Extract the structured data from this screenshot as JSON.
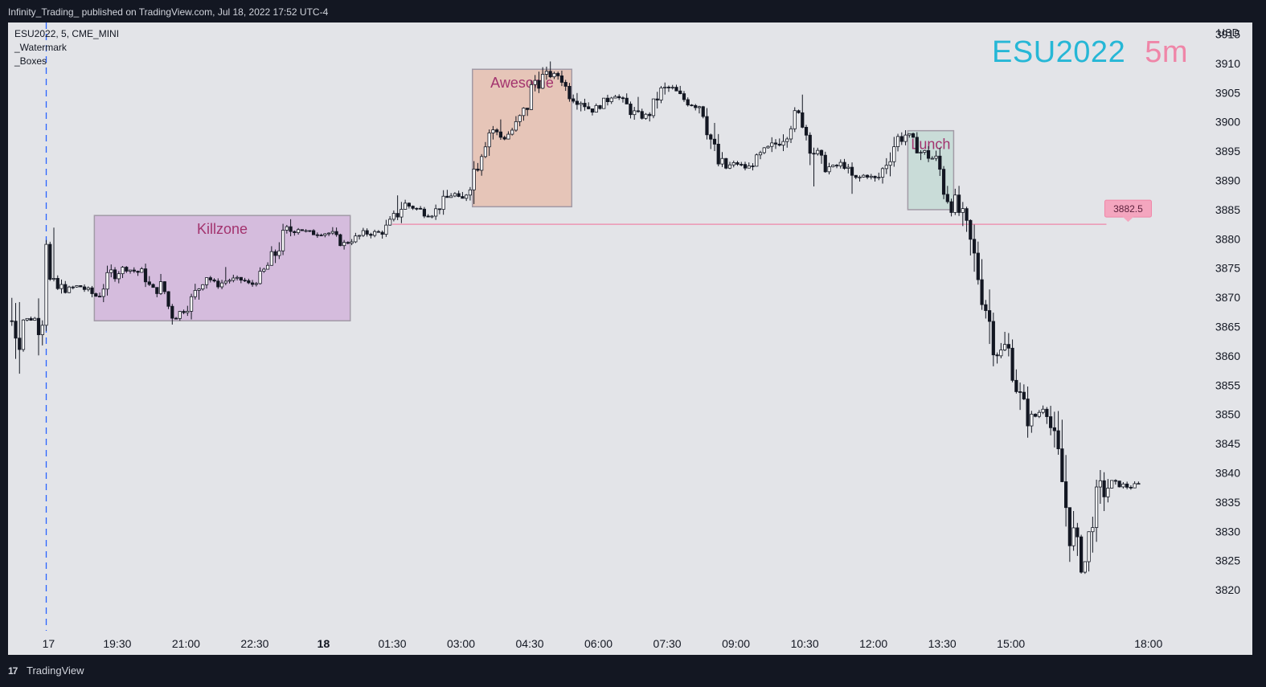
{
  "header": {
    "publish_line": "Infinity_Trading_ published on TradingView.com, Jul 18, 2022 17:52 UTC-4"
  },
  "legend": {
    "line1": "ESU2022, 5, CME_MINI",
    "line2": "_Watermark",
    "line3": "_Boxes"
  },
  "watermark": {
    "symbol": "ESU2022",
    "interval": "5m"
  },
  "footer": {
    "brand": "TradingView"
  },
  "colors": {
    "background": "#e3e4e8",
    "frame": "#131722",
    "killzone": "#d5bcdd",
    "awesome": "#e6c5b8",
    "lunch": "#c9dcd8",
    "box_label": "#a3336e",
    "price_line": "#ef86a8",
    "session_line": "#2962ff"
  },
  "chart_data": {
    "type": "candlestick",
    "currency": "USD",
    "price_ticks": [
      3915,
      3910,
      3905,
      3900,
      3895,
      3890,
      3885,
      3880,
      3875,
      3870,
      3865,
      3860,
      3855,
      3850,
      3845,
      3840,
      3835,
      3830,
      3825,
      3820
    ],
    "time_ticks": [
      {
        "label": "17",
        "t": 0,
        "bold": false
      },
      {
        "label": "19:30",
        "t": 90,
        "bold": false
      },
      {
        "label": "21:00",
        "t": 180,
        "bold": false
      },
      {
        "label": "22:30",
        "t": 270,
        "bold": false
      },
      {
        "label": "18",
        "t": 360,
        "bold": true
      },
      {
        "label": "01:30",
        "t": 450,
        "bold": false
      },
      {
        "label": "03:00",
        "t": 540,
        "bold": false
      },
      {
        "label": "04:30",
        "t": 630,
        "bold": false
      },
      {
        "label": "06:00",
        "t": 720,
        "bold": false
      },
      {
        "label": "07:30",
        "t": 810,
        "bold": false
      },
      {
        "label": "09:00",
        "t": 900,
        "bold": false
      },
      {
        "label": "10:30",
        "t": 990,
        "bold": false
      },
      {
        "label": "12:00",
        "t": 1080,
        "bold": false
      },
      {
        "label": "13:30",
        "t": 1170,
        "bold": false
      },
      {
        "label": "15:00",
        "t": 1260,
        "bold": false
      },
      {
        "label": "18:00",
        "t": 1440,
        "bold": false
      }
    ],
    "price_path": [
      [
        -48,
        3866
      ],
      [
        0,
        3866.5
      ],
      [
        2,
        3880
      ],
      [
        4,
        3873
      ],
      [
        20,
        3871
      ],
      [
        45,
        3872
      ],
      [
        70,
        3870
      ],
      [
        85,
        3874
      ],
      [
        105,
        3875
      ],
      [
        130,
        3874
      ],
      [
        140,
        3871
      ],
      [
        155,
        3872
      ],
      [
        165,
        3867
      ],
      [
        180,
        3867.5
      ],
      [
        195,
        3870
      ],
      [
        210,
        3874
      ],
      [
        225,
        3872
      ],
      [
        240,
        3873
      ],
      [
        260,
        3873
      ],
      [
        270,
        3872
      ],
      [
        285,
        3874
      ],
      [
        300,
        3877
      ],
      [
        315,
        3881
      ],
      [
        330,
        3882
      ],
      [
        345,
        3881
      ],
      [
        360,
        3881
      ],
      [
        375,
        3881
      ],
      [
        390,
        3879
      ],
      [
        405,
        3880
      ],
      [
        420,
        3881
      ],
      [
        440,
        3881
      ],
      [
        455,
        3883
      ],
      [
        470,
        3886
      ],
      [
        490,
        3885
      ],
      [
        505,
        3884
      ],
      [
        520,
        3886
      ],
      [
        535,
        3888
      ],
      [
        545,
        3886
      ],
      [
        555,
        3889
      ],
      [
        565,
        3893
      ],
      [
        575,
        3897
      ],
      [
        585,
        3899
      ],
      [
        600,
        3897
      ],
      [
        615,
        3899
      ],
      [
        630,
        3902
      ],
      [
        640,
        3907
      ],
      [
        660,
        3908
      ],
      [
        675,
        3908
      ],
      [
        685,
        3905
      ],
      [
        700,
        3904
      ],
      [
        715,
        3902
      ],
      [
        730,
        3903
      ],
      [
        745,
        3905
      ],
      [
        760,
        3903
      ],
      [
        775,
        3901
      ],
      [
        790,
        3901
      ],
      [
        805,
        3905
      ],
      [
        820,
        3906
      ],
      [
        835,
        3904
      ],
      [
        850,
        3903
      ],
      [
        860,
        3903
      ],
      [
        870,
        3898
      ],
      [
        880,
        3893
      ],
      [
        890,
        3892
      ],
      [
        905,
        3893
      ],
      [
        920,
        3892
      ],
      [
        935,
        3894
      ],
      [
        955,
        3896
      ],
      [
        970,
        3898
      ],
      [
        985,
        3902
      ],
      [
        1000,
        3897
      ],
      [
        1015,
        3893
      ],
      [
        1030,
        3892
      ],
      [
        1045,
        3893
      ],
      [
        1060,
        3890
      ],
      [
        1075,
        3891
      ],
      [
        1090,
        3890
      ],
      [
        1105,
        3894
      ],
      [
        1115,
        3897
      ],
      [
        1130,
        3898
      ],
      [
        1145,
        3895
      ],
      [
        1160,
        3894
      ],
      [
        1170,
        3893
      ],
      [
        1178,
        3888
      ],
      [
        1190,
        3886
      ],
      [
        1200,
        3884
      ],
      [
        1210,
        3880
      ],
      [
        1220,
        3875
      ],
      [
        1230,
        3870
      ],
      [
        1240,
        3864
      ],
      [
        1250,
        3860
      ],
      [
        1260,
        3862
      ],
      [
        1270,
        3856
      ],
      [
        1280,
        3851
      ],
      [
        1290,
        3849
      ],
      [
        1300,
        3850
      ],
      [
        1310,
        3852
      ],
      [
        1320,
        3846
      ],
      [
        1330,
        3840
      ],
      [
        1340,
        3832
      ],
      [
        1350,
        3827
      ],
      [
        1360,
        3823
      ],
      [
        1370,
        3832
      ],
      [
        1380,
        3836
      ],
      [
        1395,
        3838
      ],
      [
        1410,
        3838
      ],
      [
        1420,
        3837.5
      ],
      [
        1430,
        3838
      ]
    ],
    "spikes": [
      {
        "t": 5,
        "dir": 1,
        "amt": 8
      },
      {
        "t": 230,
        "dir": 1,
        "amt": 2
      },
      {
        "t": 455,
        "dir": 1,
        "amt": 3
      },
      {
        "t": 590,
        "dir": 1,
        "amt": 2
      },
      {
        "t": 655,
        "dir": 1,
        "amt": 1.5
      },
      {
        "t": 770,
        "dir": 1,
        "amt": 1.5
      },
      {
        "t": 985,
        "dir": 1,
        "amt": 3
      },
      {
        "t": 1000,
        "dir": -1,
        "amt": 4
      },
      {
        "t": 1050,
        "dir": -1,
        "amt": 3
      },
      {
        "t": 1365,
        "dir": -1,
        "amt": 3
      }
    ],
    "boxes": [
      {
        "label": "Killzone",
        "t_start": 60,
        "t_end": 395,
        "price_top": 3884,
        "price_bottom": 3866,
        "color": "#d5bcdd"
      },
      {
        "label": "Awesome",
        "t_start": 555,
        "t_end": 685,
        "price_top": 3909,
        "price_bottom": 3885.5,
        "color": "#e6c5b8"
      },
      {
        "label": "Lunch",
        "t_start": 1125,
        "t_end": 1185,
        "price_top": 3898.5,
        "price_bottom": 3885,
        "color": "#c9dcd8"
      }
    ],
    "horizontal_lines": [
      {
        "price": 3882.5,
        "t_start": 450,
        "t_end": 1385,
        "label": "3882.5"
      }
    ],
    "session_breaks": [
      {
        "t": -3
      }
    ],
    "y_range": [
      3813,
      3917
    ],
    "x_range": [
      -53,
      1515
    ]
  }
}
